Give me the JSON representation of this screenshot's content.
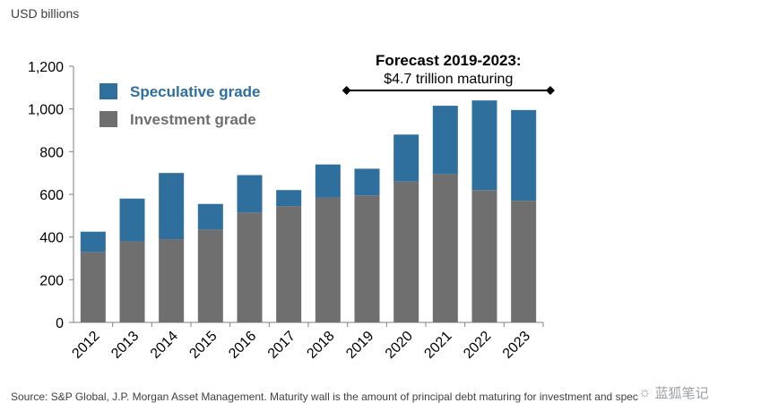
{
  "unit_label": "USD billions",
  "source": "Source: S&P Global, J.P. Morgan Asset Management. Maturity wall is the amount of principal debt maturing for investment and speculative grade",
  "watermark": "蓝狐笔记",
  "watermark_icon": "wechat-icon",
  "colors": {
    "speculative": "#2e6f9e",
    "investment": "#6f6f6f",
    "axis": "#808080",
    "text": "#000000"
  },
  "chart_data": {
    "type": "bar",
    "stacked": true,
    "categories": [
      "2012",
      "2013",
      "2014",
      "2015",
      "2016",
      "2017",
      "2018",
      "2019",
      "2020",
      "2021",
      "2022",
      "2023"
    ],
    "series": [
      {
        "name": "Investment grade",
        "values": [
          330,
          380,
          390,
          435,
          515,
          545,
          585,
          595,
          660,
          695,
          620,
          570
        ]
      },
      {
        "name": "Speculative grade",
        "values": [
          95,
          200,
          310,
          120,
          175,
          75,
          155,
          125,
          220,
          320,
          420,
          425
        ]
      }
    ],
    "ylim": [
      0,
      1200
    ],
    "yticks": [
      0,
      200,
      400,
      600,
      800,
      1000,
      1200
    ],
    "ytick_labels": [
      "0",
      "200",
      "400",
      "600",
      "800",
      "1,000",
      "1,200"
    ],
    "legend": [
      "Speculative grade",
      "Investment grade"
    ],
    "legend_position": "top-left",
    "annotation": {
      "title": "Forecast 2019-2023:",
      "subtitle": "$4.7 trillion maturing",
      "from": "2019",
      "to": "2023"
    }
  }
}
